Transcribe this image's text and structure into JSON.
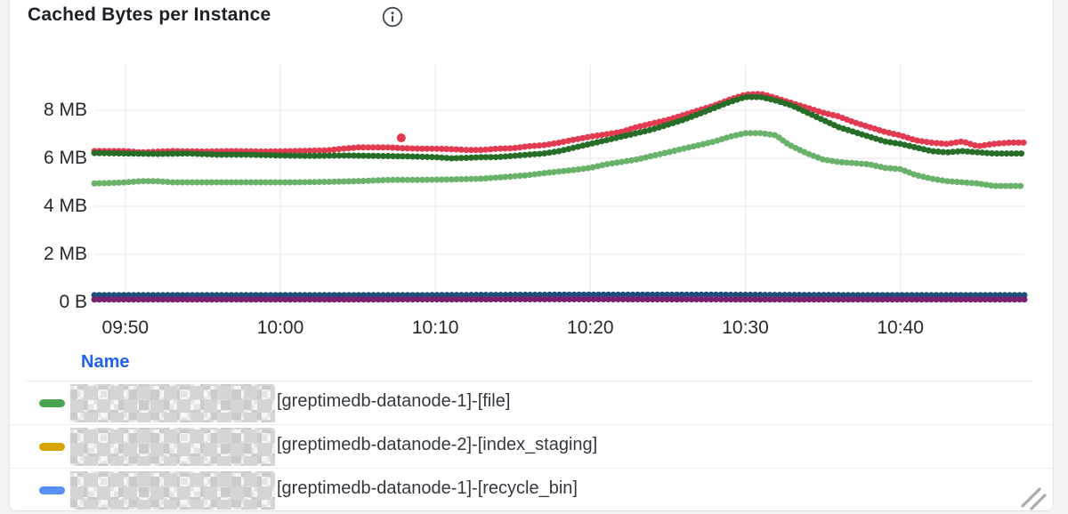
{
  "panel": {
    "title": "Cached Bytes per Instance",
    "info_icon": "info-circle-icon"
  },
  "chart_data": {
    "type": "line",
    "title": "Cached Bytes per Instance",
    "unit": "bytes",
    "style": "dotted-step-lines",
    "grid": true,
    "ylim_mb": [
      0,
      10
    ],
    "x_range_minutes": [
      0,
      60
    ],
    "y_ticks": [
      {
        "label": "0 B",
        "mb": 0
      },
      {
        "label": "2 MB",
        "mb": 2
      },
      {
        "label": "4 MB",
        "mb": 4
      },
      {
        "label": "6 MB",
        "mb": 6
      },
      {
        "label": "8 MB",
        "mb": 8
      }
    ],
    "x_ticks": [
      {
        "label": "09:50",
        "minute": 2
      },
      {
        "label": "10:00",
        "minute": 12
      },
      {
        "label": "10:10",
        "minute": 22
      },
      {
        "label": "10:20",
        "minute": 32
      },
      {
        "label": "10:30",
        "minute": 42
      },
      {
        "label": "10:40",
        "minute": 52
      }
    ],
    "series": [
      {
        "name": "series-red",
        "color": "#e23a50",
        "points": [
          [
            0,
            6.3
          ],
          [
            2,
            6.3
          ],
          [
            3,
            6.25
          ],
          [
            5,
            6.3
          ],
          [
            7,
            6.28
          ],
          [
            9,
            6.3
          ],
          [
            11,
            6.28
          ],
          [
            13,
            6.3
          ],
          [
            15,
            6.33
          ],
          [
            16,
            6.4
          ],
          [
            17,
            6.45
          ],
          [
            18,
            6.45
          ],
          [
            19,
            6.45
          ],
          [
            20,
            6.42
          ],
          [
            21,
            6.4
          ],
          [
            22,
            6.4
          ],
          [
            23,
            6.38
          ],
          [
            24,
            6.35
          ],
          [
            25,
            6.35
          ],
          [
            26,
            6.4
          ],
          [
            27,
            6.42
          ],
          [
            28,
            6.5
          ],
          [
            29,
            6.55
          ],
          [
            30,
            6.65
          ],
          [
            31,
            6.78
          ],
          [
            32,
            6.9
          ],
          [
            33,
            7.0
          ],
          [
            34,
            7.1
          ],
          [
            35,
            7.3
          ],
          [
            36,
            7.45
          ],
          [
            37,
            7.6
          ],
          [
            38,
            7.8
          ],
          [
            39,
            8.0
          ],
          [
            40,
            8.2
          ],
          [
            41,
            8.45
          ],
          [
            42,
            8.65
          ],
          [
            43,
            8.68
          ],
          [
            43.5,
            8.6
          ],
          [
            44,
            8.5
          ],
          [
            45,
            8.3
          ],
          [
            46,
            8.1
          ],
          [
            47,
            7.9
          ],
          [
            48,
            7.75
          ],
          [
            49,
            7.5
          ],
          [
            50,
            7.3
          ],
          [
            51,
            7.1
          ],
          [
            52,
            6.95
          ],
          [
            53,
            6.75
          ],
          [
            54,
            6.65
          ],
          [
            55,
            6.6
          ],
          [
            56,
            6.7
          ],
          [
            56.5,
            6.6
          ],
          [
            57,
            6.5
          ],
          [
            58,
            6.6
          ],
          [
            59,
            6.65
          ],
          [
            60,
            6.65
          ]
        ]
      },
      {
        "name": "series-dark-green",
        "color": "#266d28",
        "points": [
          [
            0,
            6.22
          ],
          [
            2,
            6.2
          ],
          [
            4,
            6.18
          ],
          [
            6,
            6.2
          ],
          [
            8,
            6.15
          ],
          [
            10,
            6.15
          ],
          [
            12,
            6.12
          ],
          [
            14,
            6.1
          ],
          [
            16,
            6.12
          ],
          [
            18,
            6.1
          ],
          [
            20,
            6.08
          ],
          [
            22,
            6.05
          ],
          [
            23,
            6.0
          ],
          [
            24,
            6.02
          ],
          [
            25,
            6.05
          ],
          [
            26,
            6.05
          ],
          [
            27,
            6.1
          ],
          [
            28,
            6.15
          ],
          [
            29,
            6.2
          ],
          [
            30,
            6.3
          ],
          [
            31,
            6.45
          ],
          [
            32,
            6.6
          ],
          [
            33,
            6.75
          ],
          [
            34,
            6.9
          ],
          [
            35,
            7.05
          ],
          [
            36,
            7.2
          ],
          [
            37,
            7.4
          ],
          [
            38,
            7.6
          ],
          [
            39,
            7.85
          ],
          [
            40,
            8.1
          ],
          [
            41,
            8.35
          ],
          [
            42,
            8.55
          ],
          [
            43,
            8.55
          ],
          [
            44,
            8.4
          ],
          [
            45,
            8.2
          ],
          [
            46,
            7.9
          ],
          [
            47,
            7.6
          ],
          [
            48,
            7.3
          ],
          [
            49,
            7.1
          ],
          [
            50,
            6.9
          ],
          [
            51,
            6.7
          ],
          [
            52,
            6.6
          ],
          [
            53,
            6.45
          ],
          [
            54,
            6.3
          ],
          [
            55,
            6.25
          ],
          [
            56,
            6.3
          ],
          [
            57,
            6.25
          ],
          [
            58,
            6.2
          ],
          [
            59,
            6.2
          ],
          [
            60,
            6.2
          ]
        ]
      },
      {
        "name": "series-light-green",
        "color": "#68b26a",
        "points": [
          [
            0,
            4.95
          ],
          [
            1,
            4.97
          ],
          [
            2,
            5.0
          ],
          [
            3,
            5.05
          ],
          [
            4,
            5.05
          ],
          [
            5,
            5.0
          ],
          [
            7,
            5.0
          ],
          [
            9,
            5.0
          ],
          [
            11,
            5.0
          ],
          [
            13,
            5.0
          ],
          [
            15,
            5.02
          ],
          [
            17,
            5.05
          ],
          [
            19,
            5.1
          ],
          [
            21,
            5.1
          ],
          [
            23,
            5.12
          ],
          [
            25,
            5.15
          ],
          [
            26,
            5.2
          ],
          [
            27,
            5.25
          ],
          [
            28,
            5.3
          ],
          [
            29,
            5.38
          ],
          [
            30,
            5.45
          ],
          [
            31,
            5.52
          ],
          [
            32,
            5.6
          ],
          [
            33,
            5.75
          ],
          [
            34,
            5.85
          ],
          [
            35,
            5.95
          ],
          [
            36,
            6.1
          ],
          [
            37,
            6.25
          ],
          [
            38,
            6.4
          ],
          [
            39,
            6.55
          ],
          [
            40,
            6.7
          ],
          [
            41,
            6.9
          ],
          [
            42,
            7.05
          ],
          [
            43,
            7.05
          ],
          [
            44,
            6.95
          ],
          [
            44.5,
            6.7
          ],
          [
            45,
            6.5
          ],
          [
            46,
            6.2
          ],
          [
            47,
            5.95
          ],
          [
            48,
            5.85
          ],
          [
            49,
            5.8
          ],
          [
            50,
            5.75
          ],
          [
            51,
            5.6
          ],
          [
            52,
            5.55
          ],
          [
            53,
            5.3
          ],
          [
            54,
            5.15
          ],
          [
            55,
            5.05
          ],
          [
            56,
            5.0
          ],
          [
            57,
            4.95
          ],
          [
            58,
            4.85
          ],
          [
            59,
            4.85
          ],
          [
            60,
            4.85
          ]
        ]
      },
      {
        "name": "series-navy",
        "color": "#1d4f7c",
        "points": [
          [
            0,
            0.3
          ],
          [
            10,
            0.3
          ],
          [
            20,
            0.3
          ],
          [
            30,
            0.32
          ],
          [
            40,
            0.32
          ],
          [
            50,
            0.3
          ],
          [
            60,
            0.3
          ]
        ]
      },
      {
        "name": "series-purple",
        "color": "#77216f",
        "points": [
          [
            0,
            0.12
          ],
          [
            15,
            0.12
          ],
          [
            30,
            0.13
          ],
          [
            45,
            0.12
          ],
          [
            60,
            0.12
          ]
        ]
      }
    ],
    "outlier": {
      "series": "series-red",
      "minute": 19.8,
      "mb": 6.85,
      "color": "#e23a50"
    }
  },
  "legend": {
    "header": "Name",
    "rows": [
      {
        "marker_color": "#4aa44e",
        "redacted_prefix": true,
        "label": "[greptimedb-datanode-1]-[file]"
      },
      {
        "marker_color": "#d7a300",
        "redacted_prefix": true,
        "label": "[greptimedb-datanode-2]-[index_staging]"
      },
      {
        "marker_color": "#5590f2",
        "redacted_prefix": true,
        "label": "[greptimedb-datanode-1]-[recycle_bin]"
      }
    ]
  },
  "colors": {
    "panel_background": "#ffffff",
    "outside_background": "#f1f2f3",
    "gridline": "#ececed",
    "axis_text": "#25292e",
    "title_text": "#1b2126",
    "legend_header": "#1f63e8",
    "legend_text": "#33383f"
  }
}
